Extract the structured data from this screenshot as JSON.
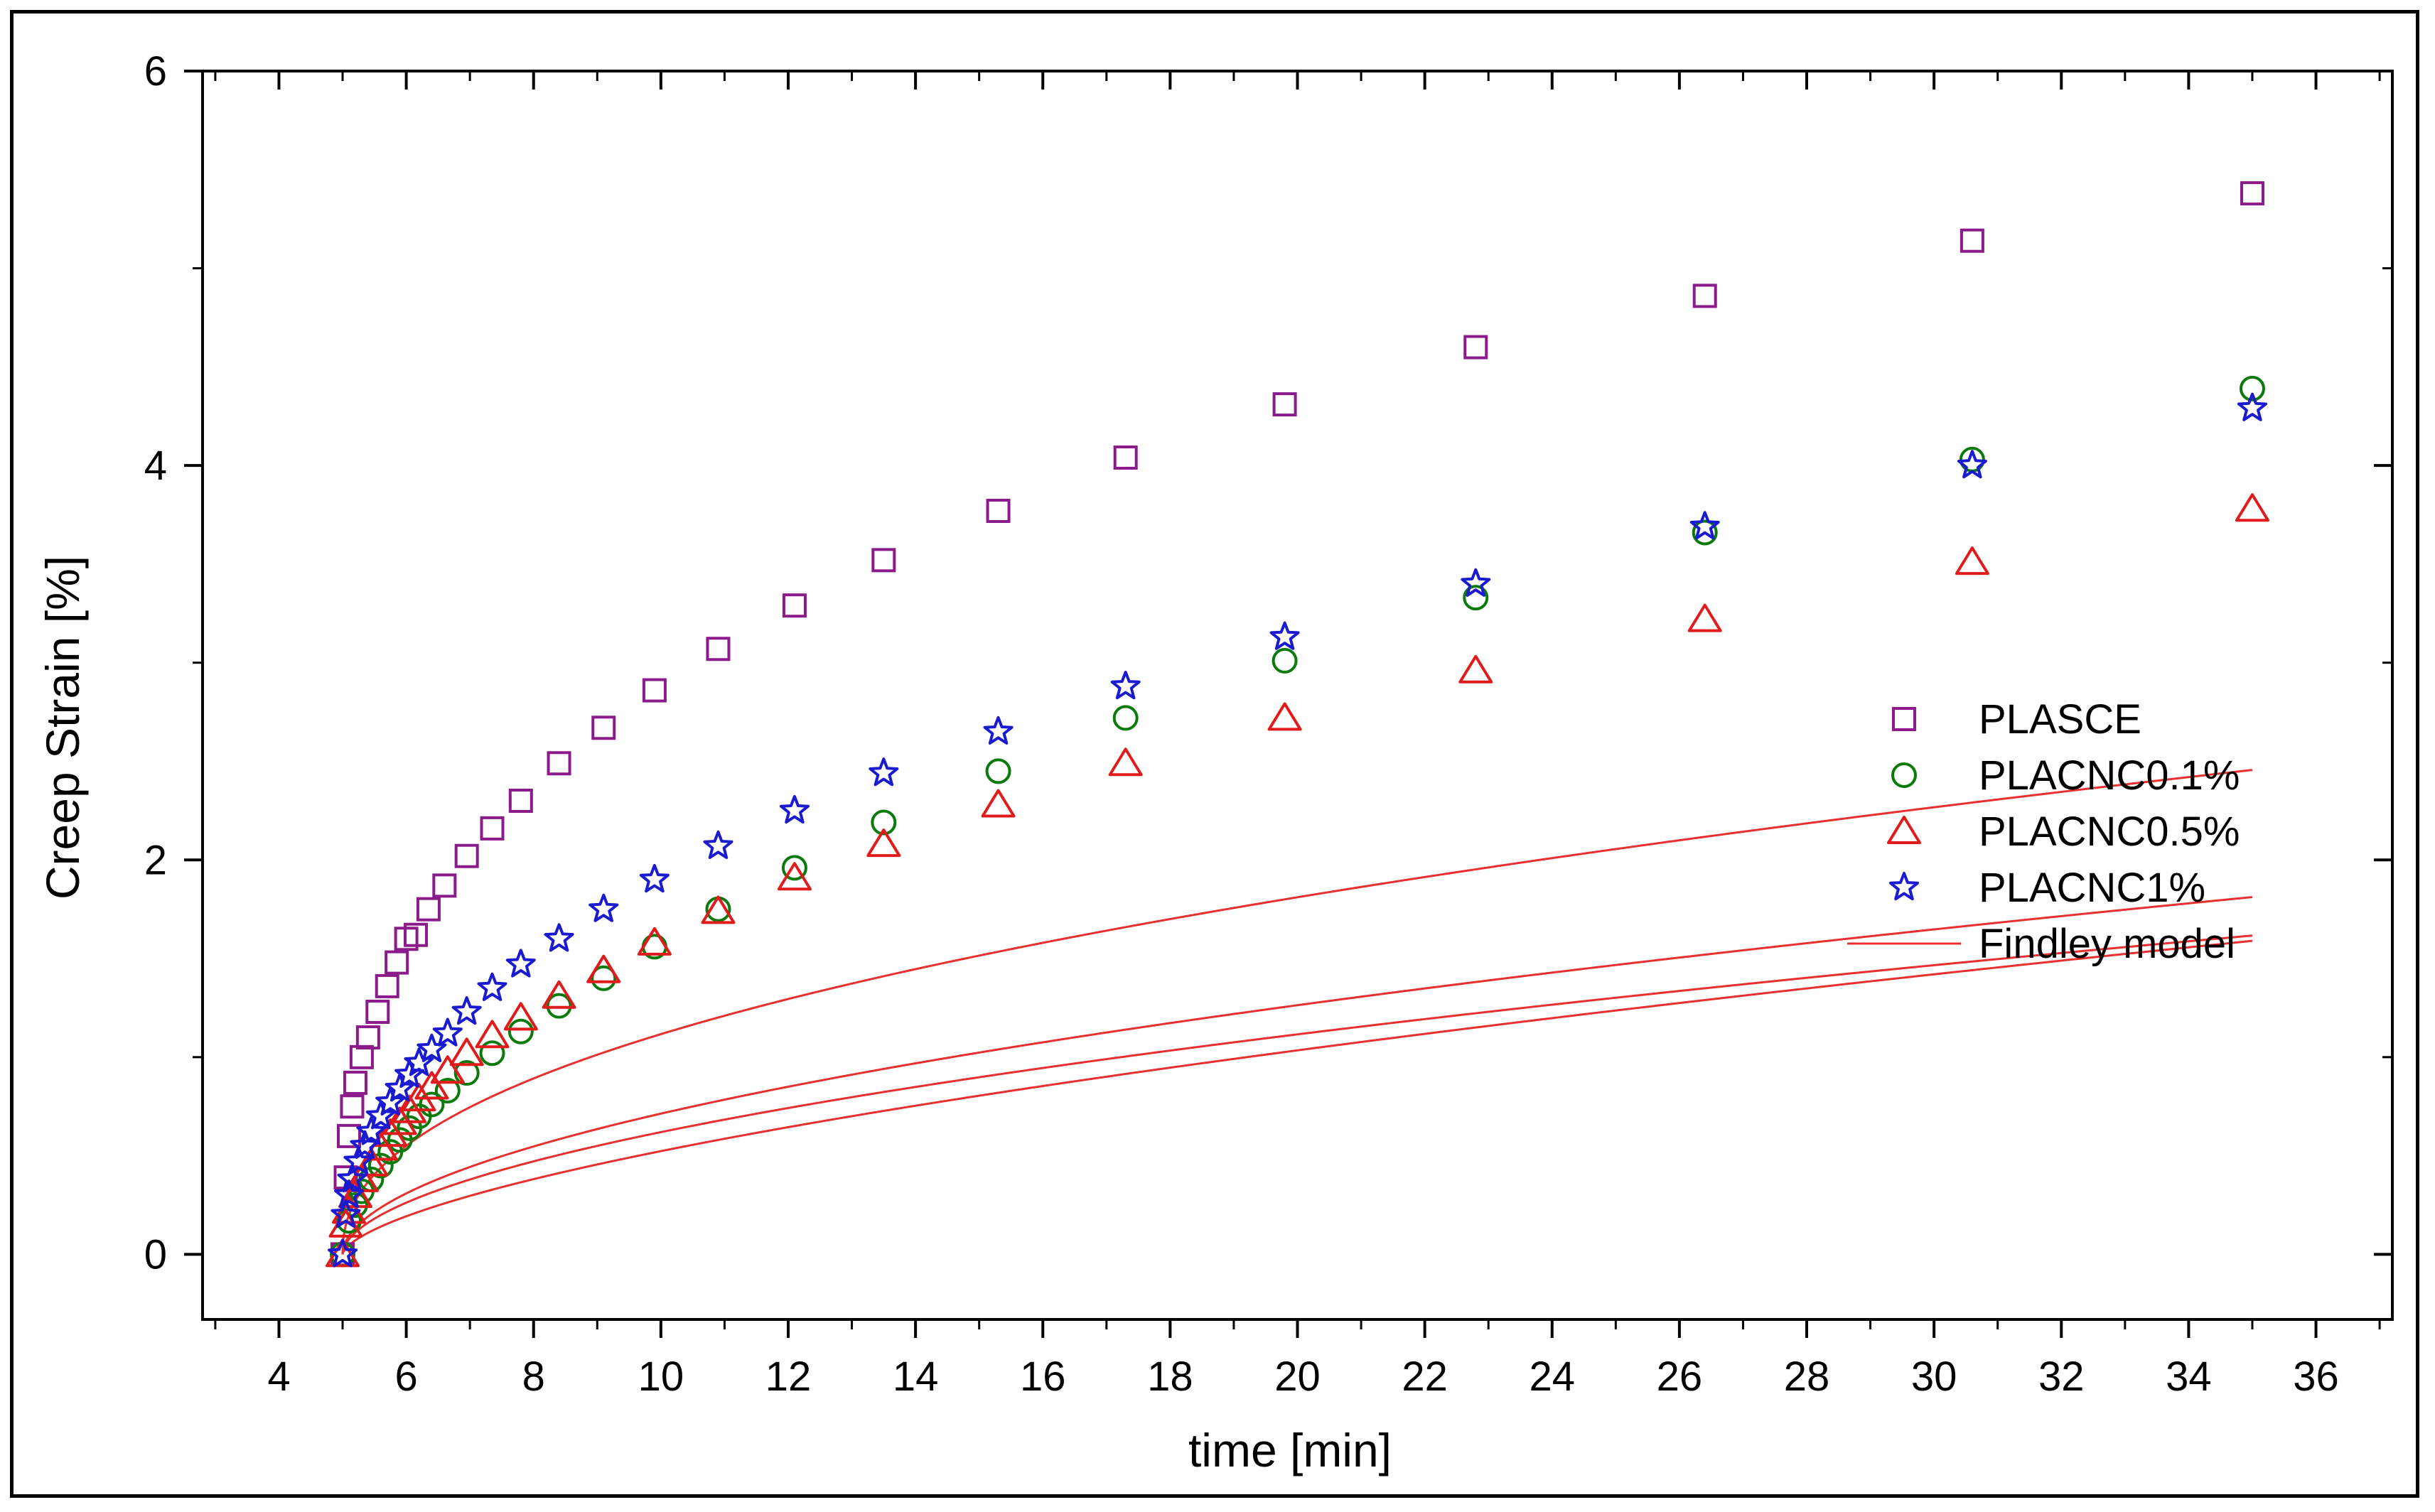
{
  "chart_data": {
    "type": "scatter",
    "title": "",
    "xlabel": "time [min]",
    "ylabel": "Creep Strain [%]",
    "xlim": [
      2.8,
      37.2
    ],
    "ylim": [
      -0.33,
      6
    ],
    "x_major_ticks": [
      4,
      6,
      8,
      10,
      12,
      14,
      16,
      18,
      20,
      22,
      24,
      26,
      28,
      30,
      32,
      34,
      36
    ],
    "x_tick_labels": [
      "4",
      "6",
      "8",
      "10",
      "12",
      "14",
      "16",
      "18",
      "20",
      "22",
      "24",
      "26",
      "28",
      "30",
      "32",
      "34",
      "36"
    ],
    "y_major_ticks": [
      0,
      2,
      4,
      6
    ],
    "y_tick_labels": [
      "0",
      "2",
      "4",
      "6"
    ],
    "y_minor_ticks": [
      1,
      3,
      5
    ],
    "grid": false,
    "legend_position": "right",
    "series": [
      {
        "name": "PLASCE",
        "marker": "square",
        "color": "#8b1a8b",
        "x": [
          5.0,
          5.05,
          5.1,
          5.15,
          5.2,
          5.3,
          5.4,
          5.55,
          5.7,
          5.85,
          6.0,
          6.15,
          6.35,
          6.6,
          6.95,
          7.35,
          7.8,
          8.4,
          9.1,
          9.9,
          10.9,
          12.1,
          13.5,
          15.3,
          17.3,
          19.8,
          22.8,
          26.4,
          30.6,
          35.0
        ],
        "y": [
          0.0,
          0.39,
          0.6,
          0.75,
          0.87,
          1.0,
          1.1,
          1.23,
          1.36,
          1.48,
          1.6,
          1.62,
          1.75,
          1.87,
          2.02,
          2.16,
          2.3,
          2.49,
          2.67,
          2.86,
          3.07,
          3.29,
          3.52,
          3.77,
          4.04,
          4.31,
          4.6,
          4.86,
          5.14,
          5.38
        ]
      },
      {
        "name": "PLACNC0.1%",
        "marker": "circle",
        "color": "#0a7a0a",
        "x": [
          5.0,
          5.1,
          5.2,
          5.3,
          5.45,
          5.6,
          5.75,
          5.9,
          6.05,
          6.2,
          6.4,
          6.65,
          6.95,
          7.35,
          7.8,
          8.4,
          9.1,
          9.9,
          10.9,
          12.1,
          13.5,
          15.3,
          17.3,
          19.8,
          22.8,
          26.4,
          30.6,
          35.0
        ],
        "y": [
          0.0,
          0.17,
          0.25,
          0.32,
          0.38,
          0.45,
          0.52,
          0.58,
          0.64,
          0.7,
          0.76,
          0.83,
          0.92,
          1.02,
          1.13,
          1.26,
          1.4,
          1.56,
          1.75,
          1.96,
          2.19,
          2.45,
          2.72,
          3.01,
          3.33,
          3.66,
          4.03,
          4.39
        ]
      },
      {
        "name": "PLACNC0.5%",
        "marker": "triangle",
        "color": "#e01b1b",
        "x": [
          5.0,
          5.05,
          5.1,
          5.2,
          5.3,
          5.45,
          5.6,
          5.75,
          5.9,
          6.05,
          6.2,
          6.4,
          6.65,
          6.95,
          7.35,
          7.8,
          8.4,
          9.1,
          9.9,
          10.9,
          12.1,
          13.5,
          15.3,
          17.3,
          19.8,
          22.8,
          26.4,
          30.6,
          35.0
        ],
        "y": [
          0.0,
          0.15,
          0.22,
          0.3,
          0.38,
          0.46,
          0.54,
          0.61,
          0.67,
          0.73,
          0.79,
          0.85,
          0.93,
          1.02,
          1.11,
          1.2,
          1.31,
          1.44,
          1.58,
          1.74,
          1.91,
          2.08,
          2.28,
          2.49,
          2.72,
          2.96,
          3.22,
          3.51,
          3.78
        ]
      },
      {
        "name": "PLACNC1%",
        "marker": "star",
        "color": "#1a1ad0",
        "x": [
          5.0,
          5.05,
          5.1,
          5.15,
          5.25,
          5.35,
          5.45,
          5.6,
          5.75,
          5.9,
          6.05,
          6.2,
          6.4,
          6.65,
          6.95,
          7.35,
          7.8,
          8.4,
          9.1,
          9.9,
          10.9,
          12.1,
          13.5,
          15.3,
          17.3,
          19.8,
          22.8,
          26.4,
          30.6,
          35.0
        ],
        "y": [
          0.0,
          0.2,
          0.3,
          0.38,
          0.47,
          0.55,
          0.62,
          0.7,
          0.77,
          0.84,
          0.91,
          0.97,
          1.04,
          1.12,
          1.23,
          1.35,
          1.47,
          1.6,
          1.75,
          1.9,
          2.07,
          2.25,
          2.44,
          2.65,
          2.88,
          3.13,
          3.4,
          3.69,
          4.0,
          4.29
        ]
      }
    ],
    "fit_lines": {
      "name": "Findley model",
      "color": "#e83030",
      "t0": 5.0,
      "curves": [
        {
          "series": "PLASCE",
          "a": 0.55,
          "n": 0.44
        },
        {
          "series": "PLACNC0.1%",
          "a": 0.193,
          "n": 0.62
        },
        {
          "series": "PLACNC0.5%",
          "a": 0.262,
          "n": 0.535
        },
        {
          "series": "PLACNC1%",
          "a": 0.309,
          "n": 0.52
        }
      ]
    }
  }
}
